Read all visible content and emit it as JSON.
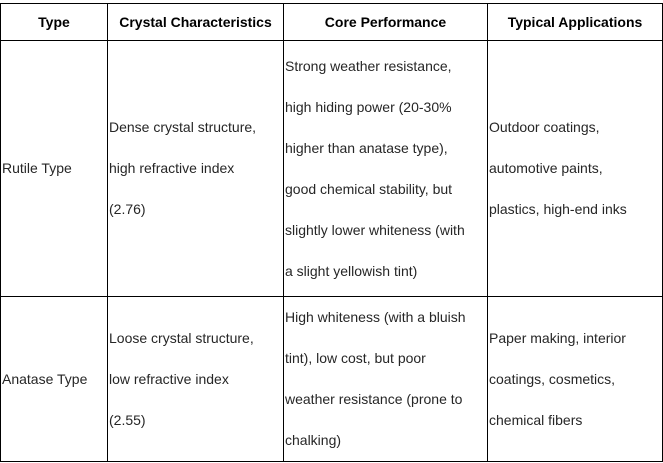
{
  "table": {
    "columns": [
      "Type",
      "Crystal Characteristics",
      "Core Performance",
      "Typical Applications"
    ],
    "rows": [
      [
        "Rutile Type",
        "Dense crystal structure,\nhigh refractive index\n(2.76)",
        "Strong weather resistance,\nhigh hiding power (20-30%\nhigher than anatase type),\ngood chemical stability, but\nslightly lower whiteness (with\na slight yellowish tint)",
        "Outdoor coatings,\nautomotive paints,\nplastics, high-end inks"
      ],
      [
        "Anatase Type",
        "Loose crystal structure,\nlow refractive index\n(2.55)",
        "High whiteness (with a bluish\ntint), low cost, but poor\nweather resistance (prone to\nchalking)",
        "Paper making, interior\ncoatings, cosmetics,\nchemical fibers"
      ]
    ],
    "colors": {
      "border": "#000000",
      "header_text": "#000000",
      "body_text": "#262626",
      "background": "#ffffff"
    }
  }
}
